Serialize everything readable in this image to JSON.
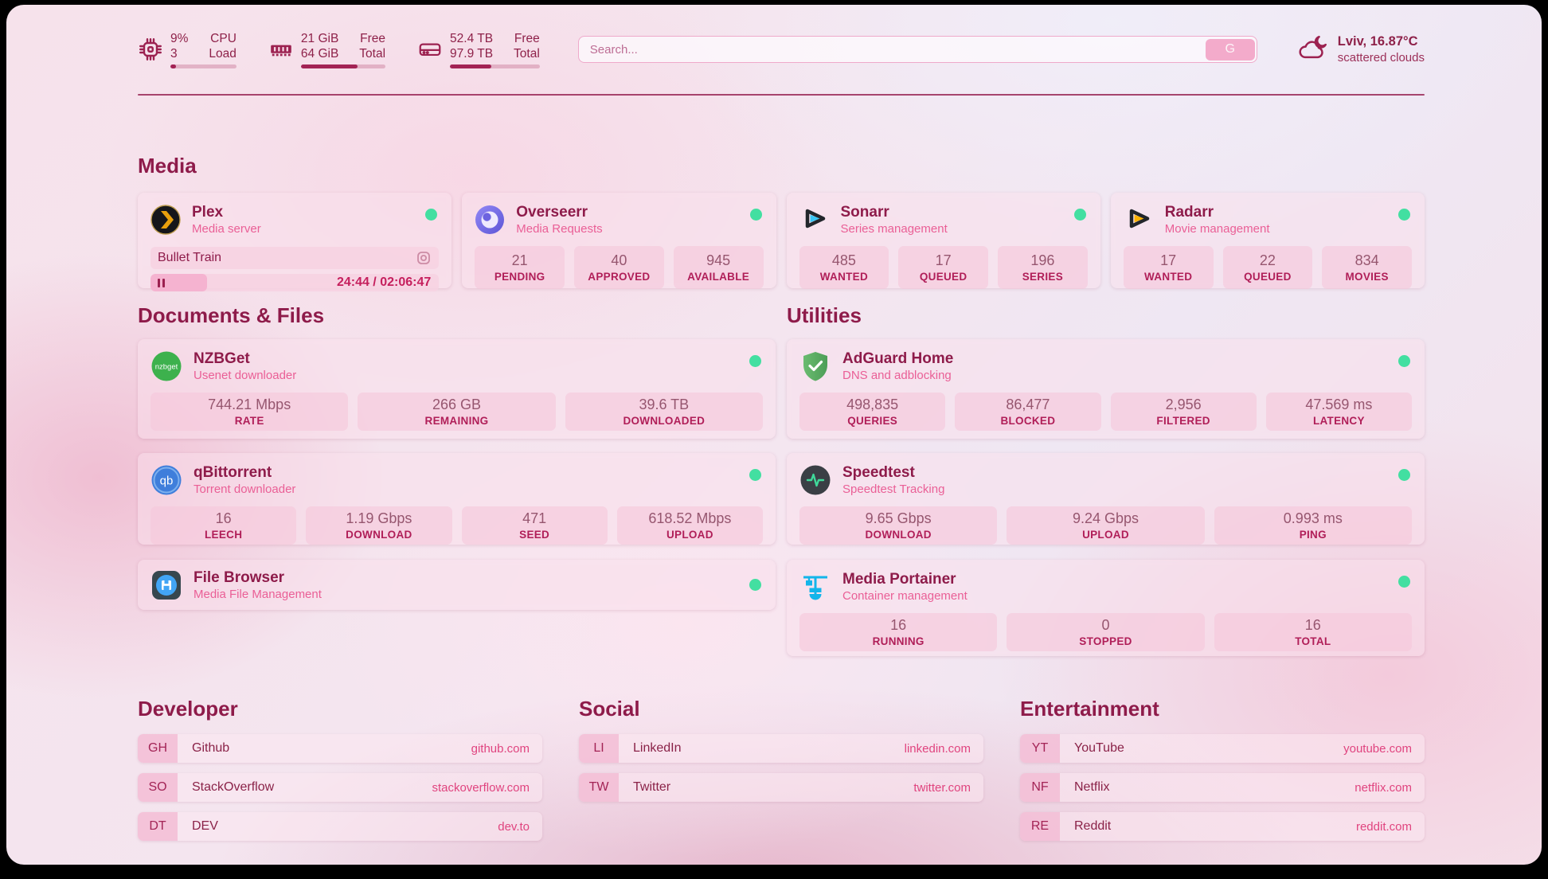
{
  "colors": {
    "accent": "#8e1b4a",
    "pink": "#ea5f96",
    "link": "#e0447f",
    "online_green": "#43dfa1"
  },
  "topbar": {
    "widgets": [
      {
        "id": "cpu",
        "values": [
          "9%",
          "3"
        ],
        "labels": [
          "CPU",
          "Load"
        ],
        "percent": 9
      },
      {
        "id": "memory",
        "values": [
          "21 GiB",
          "64 GiB"
        ],
        "labels": [
          "Free",
          "Total"
        ],
        "percent": 67
      },
      {
        "id": "disk",
        "values": [
          "52.4 TB",
          "97.9 TB"
        ],
        "labels": [
          "Free",
          "Total"
        ],
        "percent": 46
      }
    ],
    "search": {
      "placeholder": "Search...",
      "button": "G"
    },
    "weather": {
      "location": "Lviv, 16.87°C",
      "condition": "scattered clouds"
    }
  },
  "sections": {
    "media": {
      "title": "Media",
      "services": [
        {
          "name": "Plex",
          "subtitle": "Media server",
          "online": true,
          "media": {
            "title": "Bullet Train",
            "time": "24:44 / 02:06:47",
            "progress_percent": 19.5
          }
        },
        {
          "name": "Overseerr",
          "subtitle": "Media Requests",
          "online": true,
          "stats": [
            {
              "value": "21",
              "label": "PENDING"
            },
            {
              "value": "40",
              "label": "APPROVED"
            },
            {
              "value": "945",
              "label": "AVAILABLE"
            }
          ]
        },
        {
          "name": "Sonarr",
          "subtitle": "Series management",
          "online": true,
          "stats": [
            {
              "value": "485",
              "label": "WANTED"
            },
            {
              "value": "17",
              "label": "QUEUED"
            },
            {
              "value": "196",
              "label": "SERIES"
            }
          ]
        },
        {
          "name": "Radarr",
          "subtitle": "Movie management",
          "online": true,
          "stats": [
            {
              "value": "17",
              "label": "WANTED"
            },
            {
              "value": "22",
              "label": "QUEUED"
            },
            {
              "value": "834",
              "label": "MOVIES"
            }
          ]
        }
      ]
    },
    "documents": {
      "title": "Documents & Files",
      "services": [
        {
          "name": "NZBGet",
          "subtitle": "Usenet downloader",
          "online": true,
          "stats": [
            {
              "value": "744.21 Mbps",
              "label": "RATE"
            },
            {
              "value": "266 GB",
              "label": "REMAINING"
            },
            {
              "value": "39.6 TB",
              "label": "DOWNLOADED"
            }
          ]
        },
        {
          "name": "qBittorrent",
          "subtitle": "Torrent downloader",
          "online": true,
          "stats": [
            {
              "value": "16",
              "label": "LEECH"
            },
            {
              "value": "1.19 Gbps",
              "label": "DOWNLOAD"
            },
            {
              "value": "471",
              "label": "SEED"
            },
            {
              "value": "618.52 Mbps",
              "label": "UPLOAD"
            }
          ]
        },
        {
          "name": "File Browser",
          "subtitle": "Media File Management",
          "online": true
        }
      ]
    },
    "utilities": {
      "title": "Utilities",
      "services": [
        {
          "name": "AdGuard Home",
          "subtitle": "DNS and adblocking",
          "online": true,
          "stats": [
            {
              "value": "498,835",
              "label": "QUERIES"
            },
            {
              "value": "86,477",
              "label": "BLOCKED"
            },
            {
              "value": "2,956",
              "label": "FILTERED"
            },
            {
              "value": "47.569 ms",
              "label": "LATENCY"
            }
          ]
        },
        {
          "name": "Speedtest",
          "subtitle": "Speedtest Tracking",
          "online": true,
          "stats": [
            {
              "value": "9.65 Gbps",
              "label": "DOWNLOAD"
            },
            {
              "value": "9.24 Gbps",
              "label": "UPLOAD"
            },
            {
              "value": "0.993 ms",
              "label": "PING"
            }
          ]
        },
        {
          "name": "Media Portainer",
          "subtitle": "Container management",
          "online": true,
          "stats": [
            {
              "value": "16",
              "label": "RUNNING"
            },
            {
              "value": "0",
              "label": "STOPPED"
            },
            {
              "value": "16",
              "label": "TOTAL"
            }
          ]
        }
      ]
    },
    "bookmarks": [
      {
        "title": "Developer",
        "items": [
          {
            "abbr": "GH",
            "name": "Github",
            "url": "github.com"
          },
          {
            "abbr": "SO",
            "name": "StackOverflow",
            "url": "stackoverflow.com"
          },
          {
            "abbr": "DT",
            "name": "DEV",
            "url": "dev.to"
          }
        ]
      },
      {
        "title": "Social",
        "items": [
          {
            "abbr": "LI",
            "name": "LinkedIn",
            "url": "linkedin.com"
          },
          {
            "abbr": "TW",
            "name": "Twitter",
            "url": "twitter.com"
          }
        ]
      },
      {
        "title": "Entertainment",
        "items": [
          {
            "abbr": "YT",
            "name": "YouTube",
            "url": "youtube.com"
          },
          {
            "abbr": "NF",
            "name": "Netflix",
            "url": "netflix.com"
          },
          {
            "abbr": "RE",
            "name": "Reddit",
            "url": "reddit.com"
          }
        ]
      }
    ]
  }
}
